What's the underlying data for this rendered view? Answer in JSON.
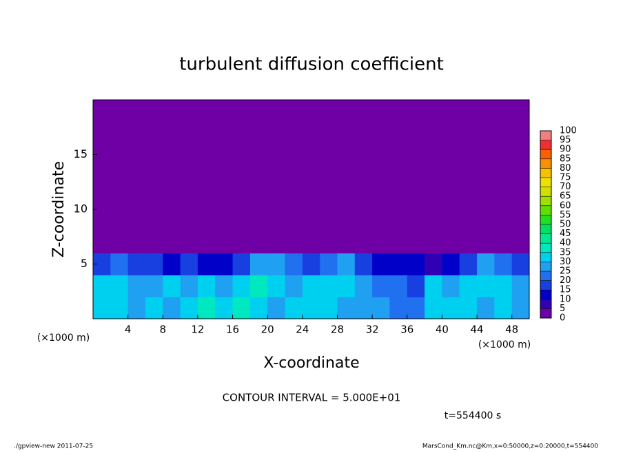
{
  "chart_data": {
    "type": "heatmap",
    "title": "turbulent diffusion coefficient",
    "xlabel": "X-coordinate",
    "ylabel": "Z-coordinate",
    "x_unit": "(×1000 m)",
    "xlim": [
      0,
      50
    ],
    "xticks": [
      4,
      8,
      12,
      16,
      20,
      24,
      28,
      32,
      36,
      40,
      44,
      48
    ],
    "ylim": [
      0,
      20
    ],
    "yticks": [
      5,
      10,
      15
    ],
    "x": [
      1,
      3,
      5,
      7,
      9,
      11,
      13,
      15,
      17,
      19,
      21,
      23,
      25,
      27,
      29,
      31,
      33,
      35,
      37,
      39,
      41,
      43,
      45,
      47,
      49
    ],
    "z": [
      1,
      3,
      5,
      7,
      9,
      11,
      13,
      15,
      17,
      19
    ],
    "values": [
      [
        30,
        32,
        28,
        30,
        25,
        30,
        35,
        30,
        35,
        30,
        28,
        30,
        32,
        30,
        28,
        25,
        25,
        22,
        20,
        30,
        32,
        30,
        28,
        30,
        25
      ],
      [
        32,
        30,
        25,
        28,
        30,
        25,
        30,
        28,
        32,
        35,
        30,
        28,
        30,
        32,
        30,
        25,
        22,
        20,
        15,
        30,
        28,
        30,
        32,
        30,
        25
      ],
      [
        15,
        20,
        18,
        15,
        12,
        15,
        10,
        12,
        15,
        25,
        25,
        20,
        15,
        22,
        25,
        15,
        12,
        12,
        10,
        5,
        10,
        15,
        25,
        20,
        15
      ],
      [
        0,
        0,
        0,
        0,
        0,
        0,
        0,
        0,
        0,
        0,
        0,
        0,
        0,
        0,
        0,
        0,
        0,
        0,
        0,
        0,
        0,
        0,
        0,
        0,
        0
      ],
      [
        0,
        0,
        0,
        0,
        0,
        0,
        0,
        0,
        0,
        0,
        0,
        0,
        0,
        0,
        0,
        0,
        0,
        0,
        0,
        0,
        0,
        0,
        0,
        0,
        0
      ],
      [
        0,
        0,
        0,
        0,
        0,
        0,
        0,
        0,
        0,
        0,
        0,
        0,
        0,
        0,
        0,
        0,
        0,
        0,
        0,
        0,
        0,
        0,
        0,
        0,
        0
      ],
      [
        0,
        0,
        0,
        0,
        0,
        0,
        0,
        0,
        0,
        0,
        0,
        0,
        0,
        0,
        0,
        0,
        0,
        0,
        0,
        0,
        0,
        0,
        0,
        0,
        0
      ],
      [
        0,
        0,
        0,
        0,
        0,
        0,
        0,
        0,
        0,
        0,
        0,
        0,
        0,
        0,
        0,
        0,
        0,
        0,
        0,
        0,
        0,
        0,
        0,
        0,
        0
      ],
      [
        0,
        0,
        0,
        0,
        0,
        0,
        0,
        0,
        0,
        0,
        0,
        0,
        0,
        0,
        0,
        0,
        0,
        0,
        0,
        0,
        0,
        0,
        0,
        0,
        0
      ],
      [
        0,
        0,
        0,
        0,
        0,
        0,
        0,
        0,
        0,
        0,
        0,
        0,
        0,
        0,
        0,
        0,
        0,
        0,
        0,
        0,
        0,
        0,
        0,
        0,
        0
      ]
    ],
    "levels": [
      0,
      5,
      10,
      15,
      20,
      25,
      30,
      35,
      40,
      45,
      50,
      55,
      60,
      65,
      70,
      75,
      80,
      85,
      90,
      95,
      100
    ],
    "colors": [
      "#6f00a6",
      "#3000b4",
      "#0000c8",
      "#1840e0",
      "#2070f0",
      "#20a0f0",
      "#00d0f0",
      "#00e8c0",
      "#00e890",
      "#00e060",
      "#20e020",
      "#60e000",
      "#a0e000",
      "#d0e000",
      "#f0e000",
      "#f8c000",
      "#f89000",
      "#f86000",
      "#f03030",
      "#f08080"
    ],
    "contour_interval": "CONTOUR INTERVAL = 5.000E+01",
    "time": "t=554400 s",
    "footer_left": "./gpview-new   2011-07-25",
    "footer_right": "MarsCond_Km.nc@Km,x=0:50000,z=0:20000,t=554400"
  }
}
